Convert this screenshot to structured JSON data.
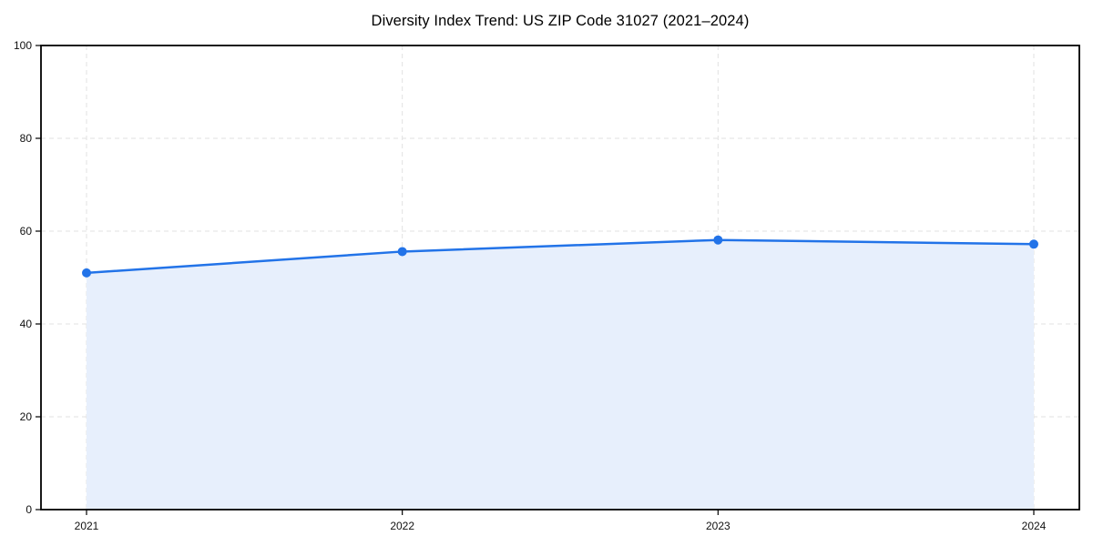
{
  "chart_data": {
    "type": "area",
    "title": "Diversity Index Trend: US ZIP Code 31027 (2021–2024)",
    "categories": [
      "2021",
      "2022",
      "2023",
      "2024"
    ],
    "values": [
      51.0,
      55.6,
      58.1,
      57.2
    ],
    "xlabel": "",
    "ylabel": "",
    "ylim": [
      0,
      100
    ],
    "yticks": [
      0,
      20,
      40,
      60,
      80,
      100
    ],
    "grid": true,
    "grid_style": "dashed",
    "legend": "none",
    "marker": "circle",
    "line_width": 2.5,
    "colors": {
      "line": "#2273e8",
      "marker": "#2273e8",
      "fill": "#e7effc",
      "grid": "#e2e2e2",
      "axis": "#000000",
      "text": "#111111",
      "background": "#ffffff"
    }
  }
}
